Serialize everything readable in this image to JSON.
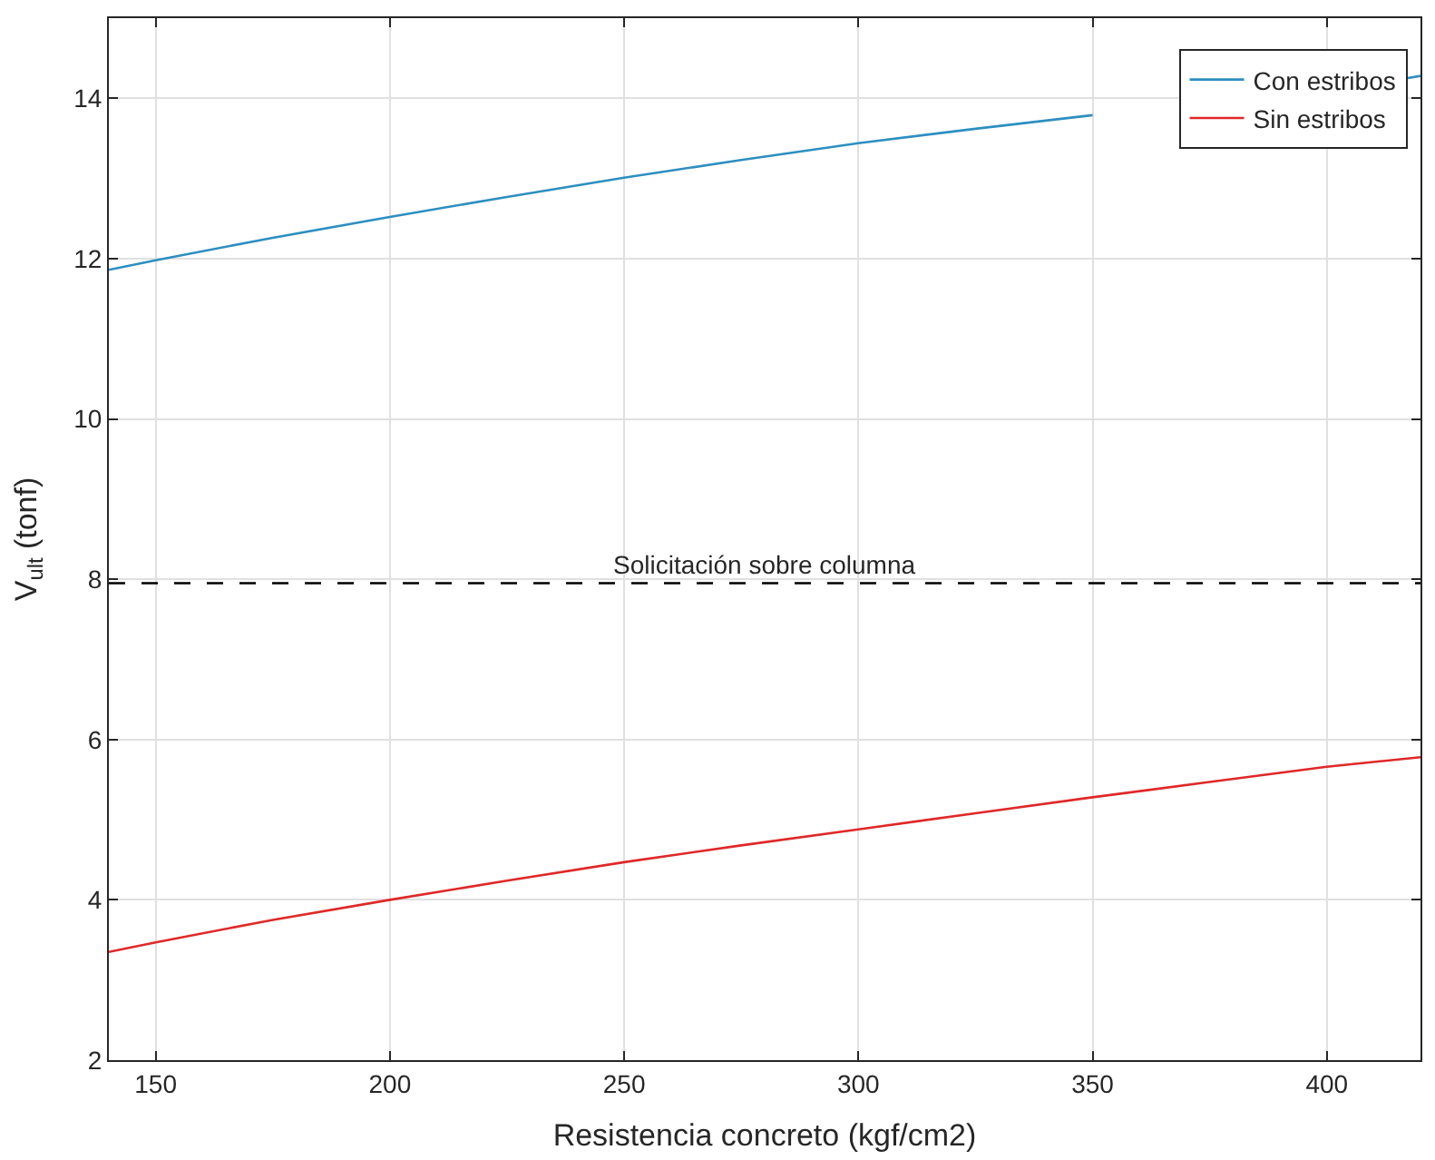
{
  "chart_data": {
    "type": "line",
    "xlabel": "Resistencia concreto (kgf/cm2)",
    "ylabel": "V$_{ult}$ (tonf)",
    "x": [
      140,
      150,
      175,
      200,
      225,
      250,
      275,
      300,
      325,
      350,
      375,
      400,
      420
    ],
    "series": [
      {
        "name": "Con estribos",
        "color": "#2c8fc0",
        "x": [
          140,
          150,
          175,
          200,
          225,
          250,
          275,
          300,
          325,
          350,
          375,
          400,
          417,
          420
        ],
        "values": [
          11.86,
          11.98,
          12.26,
          12.52,
          12.77,
          13.01,
          13.23,
          13.44,
          13.62,
          13.79,
          null,
          null,
          14.25,
          14.28
        ]
      },
      {
        "name": "Sin estribos",
        "color": "#e02828",
        "values": [
          3.35,
          3.47,
          3.75,
          4.0,
          4.24,
          4.47,
          4.68,
          4.88,
          5.08,
          5.28,
          5.47,
          5.66,
          5.78
        ]
      }
    ],
    "xlim": [
      140,
      420
    ],
    "xticks": [
      150,
      200,
      250,
      300,
      350,
      400
    ],
    "ylim": [
      2,
      15
    ],
    "yticks": [
      2,
      4,
      6,
      8,
      10,
      12,
      14
    ],
    "ref_lines": [
      {
        "axis": "y",
        "value": 7.95,
        "label": "Solicitación sobre columna",
        "color": "#000000",
        "line_style": "dashed"
      }
    ],
    "grid": true,
    "legend": "top right",
    "line_style": "solid",
    "marker": "none"
  }
}
